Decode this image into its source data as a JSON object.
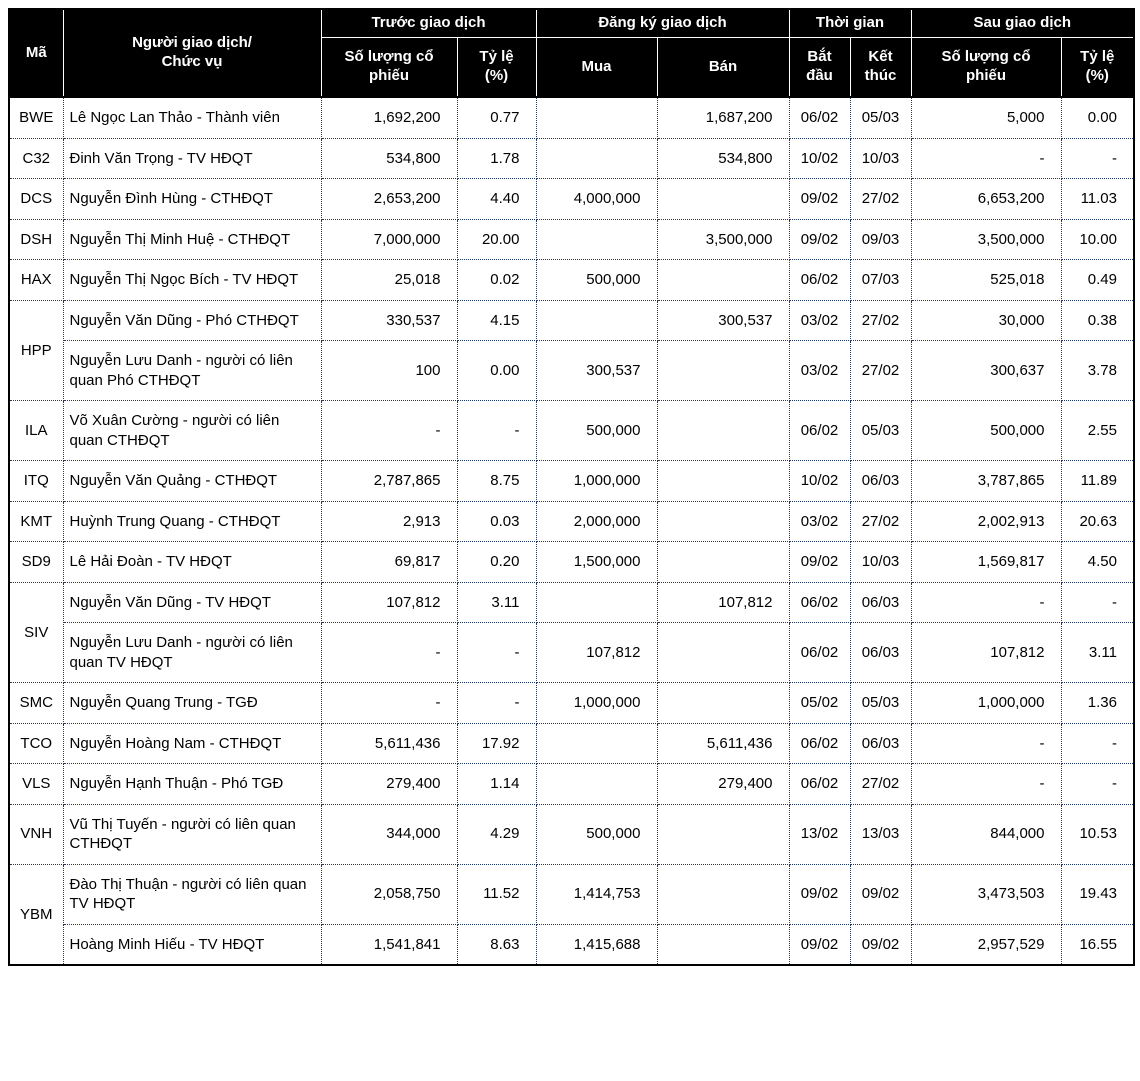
{
  "colors": {
    "header_bg": "#000000",
    "header_text": "#ffffff",
    "body_text": "#000000",
    "grid_dotted": "#1f3864",
    "outer_border": "#000000",
    "page_bg": "#ffffff"
  },
  "table": {
    "header": {
      "col_code": "Mã",
      "col_trader": "Người giao dịch/\nChức vụ",
      "group_before": "Trước giao dịch",
      "group_register": "Đăng ký giao dịch",
      "group_time": "Thời gian",
      "group_after": "Sau giao dịch",
      "col_before_shares": "Số lượng cổ\nphiếu",
      "col_before_ratio": "Tỷ lệ\n(%)",
      "col_buy": "Mua",
      "col_sell": "Bán",
      "col_start": "Bắt\nđầu",
      "col_end": "Kết\nthúc",
      "col_after_shares": "Số lượng cổ\nphiếu",
      "col_after_ratio": "Tỷ lệ\n(%)"
    },
    "rows": [
      {
        "code": "BWE",
        "code_rowspan": 1,
        "trader": "Lê Ngọc Lan Thảo - Thành viên",
        "before_shares": "1,692,200",
        "before_ratio": "0.77",
        "buy": "",
        "sell": "1,687,200",
        "start": "06/02",
        "end": "05/03",
        "after_shares": "5,000",
        "after_ratio": "0.00"
      },
      {
        "code": "C32",
        "code_rowspan": 1,
        "trader": "Đinh Văn Trọng - TV HĐQT",
        "before_shares": "534,800",
        "before_ratio": "1.78",
        "buy": "",
        "sell": "534,800",
        "start": "10/02",
        "end": "10/03",
        "after_shares": "-",
        "after_ratio": "-"
      },
      {
        "code": "DCS",
        "code_rowspan": 1,
        "trader": "Nguyễn Đình Hùng - CTHĐQT",
        "before_shares": "2,653,200",
        "before_ratio": "4.40",
        "buy": "4,000,000",
        "sell": "",
        "start": "09/02",
        "end": "27/02",
        "after_shares": "6,653,200",
        "after_ratio": "11.03"
      },
      {
        "code": "DSH",
        "code_rowspan": 1,
        "trader": "Nguyễn Thị Minh Huệ - CTHĐQT",
        "before_shares": "7,000,000",
        "before_ratio": "20.00",
        "buy": "",
        "sell": "3,500,000",
        "start": "09/02",
        "end": "09/03",
        "after_shares": "3,500,000",
        "after_ratio": "10.00"
      },
      {
        "code": "HAX",
        "code_rowspan": 1,
        "trader": "Nguyễn Thị Ngọc Bích - TV HĐQT",
        "before_shares": "25,018",
        "before_ratio": "0.02",
        "buy": "500,000",
        "sell": "",
        "start": "06/02",
        "end": "07/03",
        "after_shares": "525,018",
        "after_ratio": "0.49"
      },
      {
        "code": "HPP",
        "code_rowspan": 2,
        "trader": "Nguyễn Văn Dũng - Phó CTHĐQT",
        "before_shares": "330,537",
        "before_ratio": "4.15",
        "buy": "",
        "sell": "300,537",
        "start": "03/02",
        "end": "27/02",
        "after_shares": "30,000",
        "after_ratio": "0.38"
      },
      {
        "code": null,
        "trader": "Nguyễn Lưu Danh - người có liên quan Phó CTHĐQT",
        "before_shares": "100",
        "before_ratio": "0.00",
        "buy": "300,537",
        "sell": "",
        "start": "03/02",
        "end": "27/02",
        "after_shares": "300,637",
        "after_ratio": "3.78"
      },
      {
        "code": "ILA",
        "code_rowspan": 1,
        "trader": "Võ Xuân Cường - người có liên quan CTHĐQT",
        "before_shares": "-",
        "before_ratio": "-",
        "buy": "500,000",
        "sell": "",
        "start": "06/02",
        "end": "05/03",
        "after_shares": "500,000",
        "after_ratio": "2.55"
      },
      {
        "code": "ITQ",
        "code_rowspan": 1,
        "trader": "Nguyễn Văn Quảng - CTHĐQT",
        "before_shares": "2,787,865",
        "before_ratio": "8.75",
        "buy": "1,000,000",
        "sell": "",
        "start": "10/02",
        "end": "06/03",
        "after_shares": "3,787,865",
        "after_ratio": "11.89"
      },
      {
        "code": "KMT",
        "code_rowspan": 1,
        "trader": "Huỳnh Trung Quang - CTHĐQT",
        "before_shares": "2,913",
        "before_ratio": "0.03",
        "buy": "2,000,000",
        "sell": "",
        "start": "03/02",
        "end": "27/02",
        "after_shares": "2,002,913",
        "after_ratio": "20.63"
      },
      {
        "code": "SD9",
        "code_rowspan": 1,
        "trader": "Lê Hải Đoàn - TV HĐQT",
        "before_shares": "69,817",
        "before_ratio": "0.20",
        "buy": "1,500,000",
        "sell": "",
        "start": "09/02",
        "end": "10/03",
        "after_shares": "1,569,817",
        "after_ratio": "4.50"
      },
      {
        "code": "SIV",
        "code_rowspan": 2,
        "trader": "Nguyễn Văn Dũng - TV HĐQT",
        "before_shares": "107,812",
        "before_ratio": "3.11",
        "buy": "",
        "sell": "107,812",
        "start": "06/02",
        "end": "06/03",
        "after_shares": "-",
        "after_ratio": "-"
      },
      {
        "code": null,
        "trader": "Nguyễn Lưu Danh - người có liên quan TV HĐQT",
        "before_shares": "-",
        "before_ratio": "-",
        "buy": "107,812",
        "sell": "",
        "start": "06/02",
        "end": "06/03",
        "after_shares": "107,812",
        "after_ratio": "3.11"
      },
      {
        "code": "SMC",
        "code_rowspan": 1,
        "trader": "Nguyễn Quang Trung - TGĐ",
        "before_shares": "-",
        "before_ratio": "-",
        "buy": "1,000,000",
        "sell": "",
        "start": "05/02",
        "end": "05/03",
        "after_shares": "1,000,000",
        "after_ratio": "1.36"
      },
      {
        "code": "TCO",
        "code_rowspan": 1,
        "trader": "Nguyễn Hoàng Nam - CTHĐQT",
        "before_shares": "5,611,436",
        "before_ratio": "17.92",
        "buy": "",
        "sell": "5,611,436",
        "start": "06/02",
        "end": "06/03",
        "after_shares": "-",
        "after_ratio": "-"
      },
      {
        "code": "VLS",
        "code_rowspan": 1,
        "trader": "Nguyễn Hạnh Thuận - Phó TGĐ",
        "before_shares": "279,400",
        "before_ratio": "1.14",
        "buy": "",
        "sell": "279,400",
        "start": "06/02",
        "end": "27/02",
        "after_shares": "-",
        "after_ratio": "-"
      },
      {
        "code": "VNH",
        "code_rowspan": 1,
        "trader": "Vũ Thị Tuyến - người có liên quan CTHĐQT",
        "before_shares": "344,000",
        "before_ratio": "4.29",
        "buy": "500,000",
        "sell": "",
        "start": "13/02",
        "end": "13/03",
        "after_shares": "844,000",
        "after_ratio": "10.53"
      },
      {
        "code": "YBM",
        "code_rowspan": 2,
        "trader": "Đào Thị Thuận - người có liên quan TV HĐQT",
        "before_shares": "2,058,750",
        "before_ratio": "11.52",
        "buy": "1,414,753",
        "sell": "",
        "start": "09/02",
        "end": "09/02",
        "after_shares": "3,473,503",
        "after_ratio": "19.43"
      },
      {
        "code": null,
        "trader": "Hoàng Minh Hiếu - TV HĐQT",
        "before_shares": "1,541,841",
        "before_ratio": "8.63",
        "buy": "1,415,688",
        "sell": "",
        "start": "09/02",
        "end": "09/02",
        "after_shares": "2,957,529",
        "after_ratio": "16.55"
      }
    ]
  }
}
